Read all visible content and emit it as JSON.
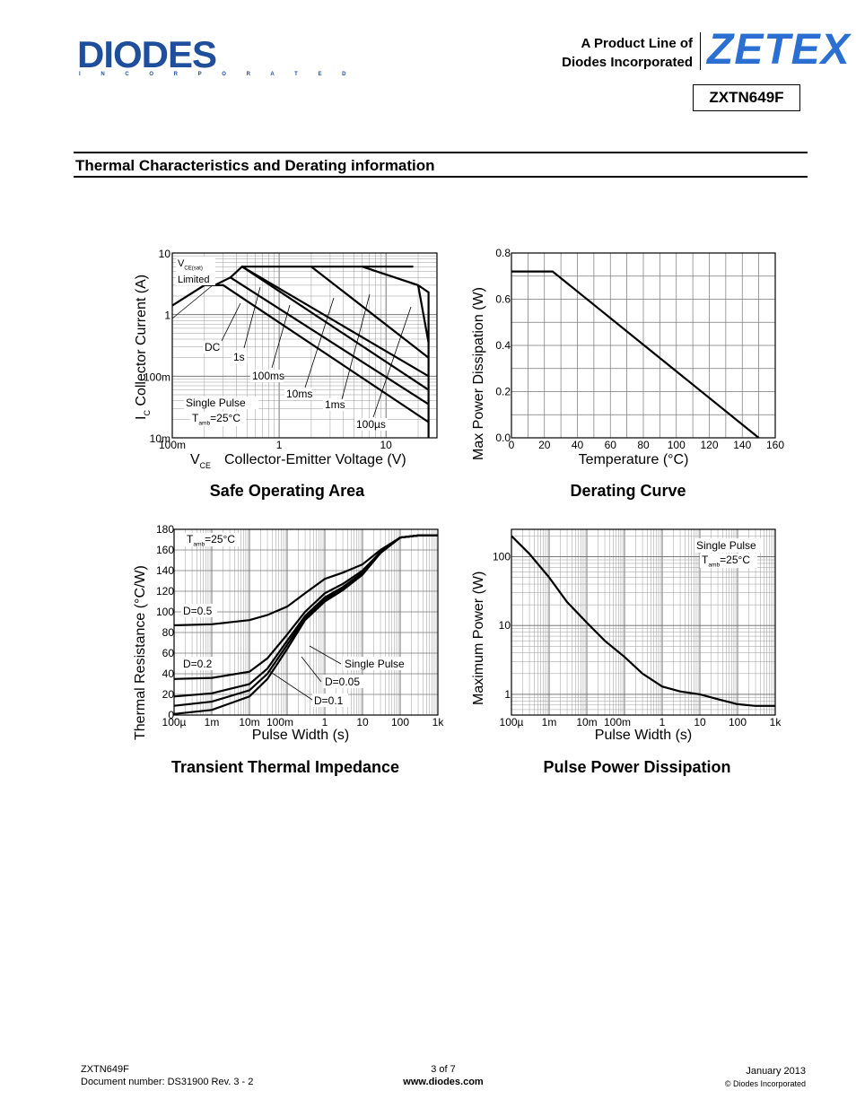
{
  "header": {
    "logo_text": "DIODES",
    "logo_sub": "I N C O R P O R A T E D",
    "product_line_1": "A Product Line of",
    "product_line_2": "Diodes Incorporated",
    "brand": "ZETEX",
    "part_number": "ZXTN649F"
  },
  "section_title": "Thermal Characteristics and Derating information",
  "chart_data": [
    {
      "type": "line",
      "title": "Safe Operating Area",
      "xlabel_sym": "V",
      "xlabel_sub": "CE",
      "xlabel": "Collector-Emitter Voltage (V)",
      "ylabel_sym": "I",
      "ylabel_sub": "C",
      "ylabel": "Collector Current (A)",
      "x_scale": "log",
      "y_scale": "log",
      "xlim": [
        0.1,
        30
      ],
      "ylim": [
        0.01,
        10
      ],
      "x_ticks": [
        "100m",
        "1",
        "10"
      ],
      "y_ticks": [
        "10",
        "1",
        "100m",
        "10m"
      ],
      "labels": {
        "vce_sym": "V",
        "vce_sub": "CE(sat)",
        "limited": "Limited",
        "dc": "DC",
        "t1s": "1s",
        "t100ms": "100ms",
        "t10ms": "10ms",
        "t1ms": "1ms",
        "t100us": "100µs",
        "pulse": "Single Pulse",
        "tamb_sym": "T",
        "tamb_sub": "amb",
        "tamb_val": "=25°C"
      },
      "series": [
        {
          "name": "DC",
          "x": [
            0.1,
            0.2,
            0.3,
            25
          ],
          "y": [
            1.4,
            3.0,
            3.0,
            0.018
          ]
        },
        {
          "name": "1s",
          "x": [
            0.25,
            0.35,
            25
          ],
          "y": [
            3.0,
            4.0,
            0.035
          ]
        },
        {
          "name": "100ms",
          "x": [
            0.35,
            0.45,
            25
          ],
          "y": [
            4.0,
            6.0,
            0.06
          ]
        },
        {
          "name": "10ms",
          "x": [
            0.45,
            25
          ],
          "y": [
            6.0,
            0.1
          ]
        },
        {
          "name": "1ms",
          "x": [
            2.0,
            25
          ],
          "y": [
            6.0,
            0.2
          ]
        },
        {
          "name": "100µs",
          "x": [
            6.0,
            20,
            25
          ],
          "y": [
            6.0,
            3.0,
            0.35
          ]
        },
        {
          "name": "max-voltage",
          "x": [
            20,
            25,
            25
          ],
          "y": [
            3.0,
            2.3,
            0.01
          ]
        },
        {
          "name": "current-limit",
          "x": [
            0.45,
            18
          ],
          "y": [
            6.0,
            6.0
          ]
        }
      ]
    },
    {
      "type": "line",
      "title": "Derating Curve",
      "xlabel": "Temperature (°C)",
      "ylabel": "Max Power Dissipation (W)",
      "xlim": [
        0,
        160
      ],
      "ylim": [
        0.0,
        0.8
      ],
      "x_ticks": [
        "0",
        "20",
        "40",
        "60",
        "80",
        "100",
        "120",
        "140",
        "160"
      ],
      "y_ticks": [
        "0.8",
        "0.6",
        "0.4",
        "0.2",
        "0.0"
      ],
      "series": [
        {
          "name": "",
          "x": [
            0,
            25,
            150
          ],
          "y": [
            0.72,
            0.72,
            0.0
          ]
        }
      ]
    },
    {
      "type": "line",
      "title": "Transient Thermal Impedance",
      "xlabel": "Pulse Width (s)",
      "ylabel": "Thermal Resistance (°C/W)",
      "x_scale": "log",
      "xlim": [
        0.0001,
        1000
      ],
      "ylim": [
        0,
        180
      ],
      "x_ticks": [
        "100µ",
        "1m",
        "10m",
        "100m",
        "1",
        "10",
        "100",
        "1k"
      ],
      "y_ticks": [
        "180",
        "160",
        "140",
        "120",
        "100",
        "80",
        "60",
        "40",
        "20",
        "0"
      ],
      "labels": {
        "tamb_sym": "T",
        "tamb_sub": "amb",
        "tamb_val": "=25°C",
        "d05": "D=0.5",
        "d02": "D=0.2",
        "pulse": "Single Pulse",
        "d005": "D=0.05",
        "d01": "D=0.1"
      },
      "series": [
        {
          "name": "D=0.5",
          "x": [
            0.0001,
            0.001,
            0.01,
            0.03,
            0.1,
            0.3,
            1,
            3,
            10,
            30,
            100,
            300,
            1000
          ],
          "y": [
            87,
            88,
            92,
            97,
            105,
            118,
            132,
            138,
            146,
            160,
            172,
            174,
            174
          ]
        },
        {
          "name": "D=0.2",
          "x": [
            0.0001,
            0.001,
            0.01,
            0.03,
            0.1,
            0.3,
            1,
            3,
            10,
            30,
            100,
            300,
            1000
          ],
          "y": [
            35,
            36,
            42,
            55,
            78,
            100,
            118,
            127,
            140,
            158,
            172,
            174,
            174
          ]
        },
        {
          "name": "D=0.1",
          "x": [
            0.0001,
            0.001,
            0.01,
            0.03,
            0.1,
            0.3,
            1,
            3,
            10,
            30,
            100,
            300,
            1000
          ],
          "y": [
            18,
            21,
            30,
            45,
            72,
            96,
            114,
            124,
            138,
            158,
            172,
            174,
            174
          ]
        },
        {
          "name": "D=0.05",
          "x": [
            0.0001,
            0.001,
            0.01,
            0.03,
            0.1,
            0.3,
            1,
            3,
            10,
            30,
            100,
            300,
            1000
          ],
          "y": [
            9,
            13,
            24,
            40,
            68,
            94,
            112,
            122,
            137,
            157,
            172,
            174,
            174
          ]
        },
        {
          "name": "Single Pulse",
          "x": [
            0.0001,
            0.001,
            0.01,
            0.03,
            0.1,
            0.3,
            1,
            3,
            10,
            30,
            100,
            300,
            1000
          ],
          "y": [
            1,
            5,
            18,
            35,
            64,
            92,
            110,
            121,
            136,
            157,
            172,
            174,
            174
          ]
        }
      ]
    },
    {
      "type": "line",
      "title": "Pulse Power Dissipation",
      "xlabel": "Pulse Width (s)",
      "ylabel": "Maximum Power (W)",
      "x_scale": "log",
      "y_scale": "log",
      "xlim": [
        0.0001,
        1000
      ],
      "ylim": [
        0.5,
        250
      ],
      "x_ticks": [
        "100µ",
        "1m",
        "10m",
        "100m",
        "1",
        "10",
        "100",
        "1k"
      ],
      "y_ticks": [
        "100",
        "10",
        "1"
      ],
      "labels": {
        "pulse": "Single Pulse",
        "tamb_sym": "T",
        "tamb_sub": "amb",
        "tamb_val": "=25°C"
      },
      "series": [
        {
          "name": "",
          "x": [
            0.0001,
            0.0003,
            0.001,
            0.003,
            0.01,
            0.03,
            0.1,
            0.3,
            1,
            3,
            10,
            30,
            100,
            300,
            1000
          ],
          "y": [
            200,
            110,
            50,
            22,
            11,
            6,
            3.5,
            2.0,
            1.3,
            1.1,
            1.0,
            0.85,
            0.72,
            0.68,
            0.68
          ]
        }
      ]
    }
  ],
  "footer": {
    "part": "ZXTN649F",
    "docnum": "Document number: DS31900 Rev. 3 - 2",
    "page": "3 of 7",
    "url": "www.diodes.com",
    "date": "January 2013",
    "copyright": "© Diodes Incorporated"
  }
}
